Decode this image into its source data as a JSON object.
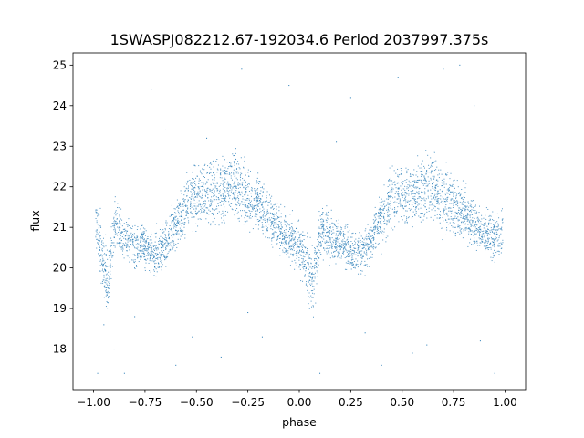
{
  "chart_data": {
    "type": "scatter",
    "title": "1SWASPJ082212.67-192034.6 Period 2037997.375s",
    "xlabel": "phase",
    "ylabel": "flux",
    "xlim": [
      -1.1,
      1.1
    ],
    "ylim": [
      17.0,
      25.3
    ],
    "xticks": [
      -1.0,
      -0.75,
      -0.5,
      -0.25,
      0.0,
      0.25,
      0.5,
      0.75,
      1.0
    ],
    "xtick_labels": [
      "−1.00",
      "−0.75",
      "−0.50",
      "−0.25",
      "0.00",
      "0.25",
      "0.50",
      "0.75",
      "1.00"
    ],
    "yticks": [
      18,
      19,
      20,
      21,
      22,
      23,
      24,
      25
    ],
    "ytick_labels": [
      "18",
      "19",
      "20",
      "21",
      "22",
      "23",
      "24",
      "25"
    ],
    "grid": false,
    "point_color": "#1f77b4",
    "x": [
      -0.98,
      -0.95,
      -0.93,
      -0.9,
      -0.88,
      -0.85,
      -0.82,
      -0.8,
      -0.77,
      -0.75,
      -0.72,
      -0.7,
      -0.67,
      -0.65,
      -0.62,
      -0.6,
      -0.57,
      -0.55,
      -0.52,
      -0.5,
      -0.47,
      -0.45,
      -0.42,
      -0.4,
      -0.37,
      -0.35,
      -0.32,
      -0.3,
      -0.27,
      -0.25,
      -0.22,
      -0.2,
      -0.17,
      -0.15,
      -0.12,
      -0.1,
      -0.07,
      -0.05,
      -0.02,
      0.02,
      0.05,
      0.07,
      0.1,
      0.12,
      0.15,
      0.17,
      0.2,
      0.22,
      0.25,
      0.27,
      0.3,
      0.32,
      0.35,
      0.37,
      0.4,
      0.42,
      0.45,
      0.47,
      0.5,
      0.52,
      0.55,
      0.57,
      0.6,
      0.62,
      0.65,
      0.67,
      0.7,
      0.72,
      0.75,
      0.77,
      0.8,
      0.82,
      0.85,
      0.87,
      0.9,
      0.92,
      0.95,
      0.98
    ],
    "y": [
      21.0,
      20.1,
      19.6,
      20.9,
      21.1,
      20.6,
      20.7,
      20.5,
      20.6,
      20.5,
      20.4,
      20.3,
      20.4,
      20.6,
      20.9,
      21.0,
      21.3,
      21.6,
      21.8,
      21.7,
      21.7,
      21.8,
      21.9,
      21.9,
      21.9,
      22.0,
      22.0,
      21.9,
      21.8,
      21.7,
      21.7,
      21.6,
      21.4,
      21.3,
      21.1,
      21.0,
      20.8,
      20.7,
      20.6,
      20.3,
      19.9,
      19.7,
      20.8,
      20.9,
      20.8,
      20.7,
      20.6,
      20.6,
      20.4,
      20.3,
      20.4,
      20.5,
      20.7,
      21.0,
      21.2,
      21.4,
      21.7,
      21.8,
      21.8,
      21.8,
      21.9,
      21.9,
      22.0,
      22.0,
      22.0,
      21.9,
      21.7,
      21.7,
      21.6,
      21.4,
      21.4,
      21.2,
      21.1,
      21.0,
      20.9,
      20.8,
      20.7,
      20.9
    ],
    "band_width": [
      0.9,
      1.1,
      1.2,
      0.9,
      1.0,
      0.8,
      0.7,
      0.7,
      0.7,
      0.7,
      0.7,
      0.8,
      0.8,
      0.8,
      0.9,
      1.0,
      1.0,
      1.0,
      1.1,
      1.1,
      1.0,
      1.1,
      1.1,
      1.2,
      1.2,
      1.1,
      1.1,
      1.2,
      1.2,
      1.1,
      1.0,
      1.0,
      0.9,
      0.9,
      0.9,
      0.8,
      0.8,
      0.8,
      0.8,
      0.9,
      1.0,
      1.1,
      0.9,
      0.9,
      0.8,
      0.8,
      0.7,
      0.7,
      0.7,
      0.7,
      0.7,
      0.8,
      0.8,
      0.9,
      0.9,
      1.0,
      1.0,
      1.1,
      1.1,
      1.0,
      1.1,
      1.1,
      1.2,
      1.2,
      1.1,
      1.1,
      1.2,
      1.1,
      1.0,
      1.0,
      0.9,
      0.9,
      0.9,
      0.8,
      0.8,
      0.8,
      0.8,
      0.9
    ],
    "outliers_x": [
      -0.98,
      -0.95,
      -0.9,
      -0.85,
      -0.72,
      -0.6,
      -0.52,
      -0.45,
      -0.38,
      -0.28,
      -0.18,
      -0.05,
      0.1,
      0.18,
      0.32,
      0.4,
      0.48,
      0.62,
      0.7,
      0.78,
      0.88,
      0.95,
      -0.8,
      0.05,
      0.55,
      -0.65,
      0.85,
      -0.25,
      0.25
    ],
    "outliers_y": [
      17.4,
      18.6,
      18.0,
      17.4,
      24.4,
      17.6,
      18.3,
      23.2,
      17.8,
      24.9,
      18.3,
      24.5,
      17.4,
      23.1,
      18.4,
      17.6,
      24.7,
      18.1,
      24.9,
      25.0,
      18.2,
      17.4,
      18.8,
      19.0,
      17.9,
      23.4,
      24.0,
      18.9,
      24.2
    ]
  }
}
